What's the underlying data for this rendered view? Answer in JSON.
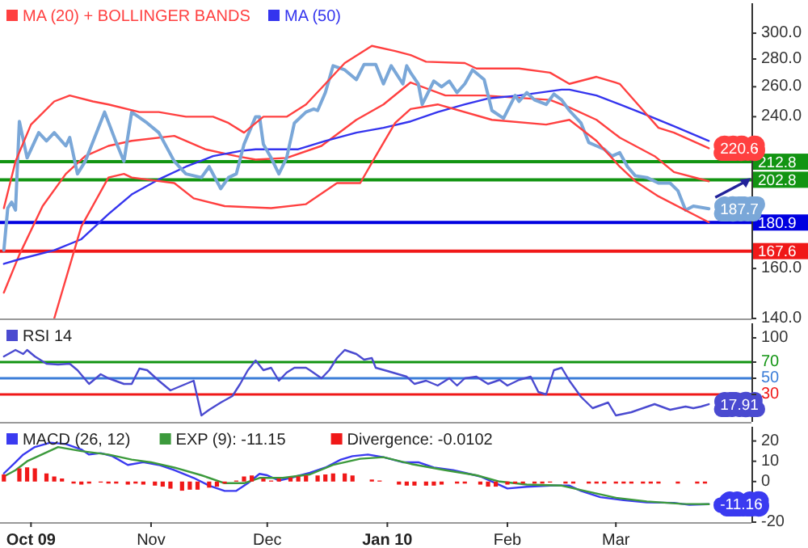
{
  "chart_data": [
    {
      "type": "line",
      "legend": "top left",
      "log": "y",
      "tick_labels": "y",
      "xlim": [
        "2009-09-23",
        "2010-04-05"
      ],
      "ylim": [
        140,
        325
      ],
      "yticks": [
        {
          "value": 140,
          "label": "140.0"
        },
        {
          "value": 160,
          "label": "160.0"
        },
        {
          "value": 240,
          "label": "240.0"
        },
        {
          "value": 260,
          "label": "260.0"
        },
        {
          "value": 280,
          "label": "280.0"
        },
        {
          "value": 300,
          "label": "300.0"
        }
      ],
      "series": [
        {
          "name": "MA (20) + BOLLINGER BANDS",
          "color": "#ff4040",
          "x": [
            "2009-09-24",
            "2009-09-28",
            "2009-10-04",
            "2009-10-10",
            "2009-10-15",
            "2009-10-21",
            "2009-10-27",
            "2009-11-07",
            "2009-11-15",
            "2009-11-23",
            "2009-11-28",
            "2009-12-06",
            "2009-12-15",
            "2009-12-24",
            "2009-12-31",
            "2010-01-07",
            "2010-01-16",
            "2010-01-26",
            "2010-02-12",
            "2010-02-17",
            "2010-02-24",
            "2010-03-02",
            "2010-03-11",
            "2010-03-16",
            "2010-03-25"
          ],
          "values": [
            150,
            166,
            189,
            206,
            216,
            222,
            225,
            228,
            220,
            216,
            214,
            215,
            222,
            238,
            248,
            263,
            254,
            254,
            251,
            246,
            238,
            227,
            216,
            207,
            202
          ]
        },
        {
          "name": "MA (50)",
          "color": "#3434ee",
          "x": [
            "2009-09-24",
            "2009-09-28",
            "2009-10-07",
            "2009-10-14",
            "2009-10-21",
            "2009-10-27",
            "2009-11-03",
            "2009-11-10",
            "2009-11-17",
            "2009-11-24",
            "2009-11-28",
            "2009-12-09",
            "2009-12-16",
            "2009-12-24",
            "2009-12-31",
            "2010-01-07",
            "2010-01-14",
            "2010-01-21",
            "2010-01-27",
            "2010-02-04",
            "2010-02-15",
            "2010-02-17",
            "2010-02-24",
            "2010-03-02",
            "2010-03-09",
            "2010-03-16",
            "2010-03-25"
          ],
          "values": [
            162,
            164,
            168,
            173,
            185,
            195,
            203,
            210,
            216,
            219,
            220,
            220,
            225,
            230,
            233,
            237,
            243,
            248,
            252,
            254,
            258,
            258,
            254,
            248,
            241,
            234,
            225
          ]
        },
        {
          "color": "#7aa7d8",
          "value_labels": [
            null,
            null,
            null,
            null,
            null,
            null,
            null,
            null,
            null,
            null,
            null,
            null,
            null,
            null,
            null,
            null,
            null,
            null,
            null,
            null,
            null,
            null,
            null,
            null,
            null,
            null,
            null,
            null,
            null,
            null,
            null,
            null,
            null,
            null,
            null,
            null,
            null,
            null,
            null,
            null,
            null,
            null,
            null,
            null,
            null,
            null,
            null,
            null,
            null,
            null,
            null,
            null,
            null,
            null,
            null,
            null,
            null,
            null,
            null,
            null,
            null,
            null,
            null,
            null,
            null,
            null,
            null,
            null,
            null,
            null,
            null,
            null,
            null,
            null,
            null,
            null,
            null,
            null,
            null,
            null,
            null,
            "187.7"
          ],
          "x": [
            "2009-09-24",
            "2009-09-25",
            "2009-09-26",
            "2009-09-27",
            "2009-09-28",
            "2009-09-30",
            "2009-10-03",
            "2009-10-05",
            "2009-10-07",
            "2009-10-10",
            "2009-10-11",
            "2009-10-13",
            "2009-10-15",
            "2009-10-20",
            "2009-10-23",
            "2009-10-25",
            "2009-10-27",
            "2009-10-31",
            "2009-11-03",
            "2009-11-07",
            "2009-11-10",
            "2009-11-14",
            "2009-11-16",
            "2009-11-19",
            "2009-11-21",
            "2009-11-23",
            "2009-11-25",
            "2009-11-28",
            "2009-11-29",
            "2009-11-30",
            "2009-12-02",
            "2009-12-04",
            "2009-12-06",
            "2009-12-08",
            "2009-12-11",
            "2009-12-13",
            "2009-12-14",
            "2009-12-16",
            "2009-12-18",
            "2009-12-21",
            "2009-12-24",
            "2009-12-26",
            "2009-12-29",
            "2009-12-31",
            "2010-01-02",
            "2010-01-05",
            "2010-01-06",
            "2010-01-07",
            "2010-01-09",
            "2010-01-10",
            "2010-01-13",
            "2010-01-15",
            "2010-01-17",
            "2010-01-19",
            "2010-01-21",
            "2010-01-23",
            "2010-01-26",
            "2010-01-28",
            "2010-01-31",
            "2010-02-03",
            "2010-02-04",
            "2010-02-06",
            "2010-02-08",
            "2010-02-11",
            "2010-02-13",
            "2010-02-15",
            "2010-02-17",
            "2010-02-20",
            "2010-02-22",
            "2010-02-24",
            "2010-02-26",
            "2010-02-28",
            "2010-03-02",
            "2010-03-04",
            "2010-03-06",
            "2010-03-09",
            "2010-03-12",
            "2010-03-15",
            "2010-03-17",
            "2010-03-19",
            "2010-03-21",
            "2010-03-25"
          ],
          "values": [
            168,
            188,
            191,
            187,
            237,
            215,
            230,
            225,
            230,
            222,
            227,
            206,
            213,
            243,
            224,
            213,
            243,
            236,
            230,
            213,
            206,
            204,
            210,
            198,
            204,
            206,
            223,
            240,
            240,
            223,
            215,
            206,
            215,
            236,
            243,
            245,
            244,
            256,
            275,
            272,
            265,
            276,
            276,
            262,
            275,
            262,
            275,
            270,
            262,
            248,
            264,
            260,
            264,
            256,
            262,
            272,
            265,
            244,
            239,
            254,
            250,
            256,
            251,
            248,
            255,
            251,
            244,
            236,
            224,
            222,
            220,
            216,
            218,
            210,
            205,
            204,
            201,
            201,
            197,
            187,
            189,
            187.7
          ]
        },
        {
          "color": "#ff4040",
          "value_labels": [
            null,
            null,
            null,
            null,
            null,
            null,
            null,
            null,
            null,
            null,
            null,
            null,
            null,
            null,
            null,
            null,
            null,
            null,
            null,
            null,
            null,
            null,
            null,
            null,
            null,
            null,
            null,
            null,
            null,
            null,
            null,
            null,
            "220.6"
          ],
          "x": [
            "2009-09-24",
            "2009-09-27",
            "2009-10-01",
            "2009-10-07",
            "2009-10-11",
            "2009-10-17",
            "2009-10-21",
            "2009-10-29",
            "2009-11-03",
            "2009-11-10",
            "2009-11-17",
            "2009-11-21",
            "2009-11-25",
            "2009-11-30",
            "2009-12-06",
            "2009-12-11",
            "2009-12-16",
            "2009-12-21",
            "2009-12-28",
            "2010-01-03",
            "2010-01-07",
            "2010-01-11",
            "2010-01-21",
            "2010-01-24",
            "2010-02-04",
            "2010-02-12",
            "2010-02-17",
            "2010-02-24",
            "2010-03-02",
            "2010-03-06",
            "2010-03-12",
            "2010-03-16",
            "2010-03-25"
          ],
          "values": [
            188,
            213,
            235,
            250,
            254,
            250,
            248,
            243,
            243,
            240,
            240,
            236,
            230,
            240,
            240,
            248,
            262,
            277,
            290,
            286,
            283,
            278,
            277,
            273,
            273,
            270,
            262,
            267,
            262,
            250,
            233,
            230,
            220.6
          ]
        },
        {
          "color": "#ff4040",
          "x": [
            "2009-10-07",
            "2009-10-14",
            "2009-10-21",
            "2009-10-25",
            "2009-10-27",
            "2009-11-07",
            "2009-11-12",
            "2009-11-20",
            "2009-12-02",
            "2009-12-11",
            "2009-12-19",
            "2009-12-25",
            "2009-12-29",
            "2010-01-03",
            "2010-01-07",
            "2010-01-14",
            "2010-01-28",
            "2010-02-11",
            "2010-02-17",
            "2010-02-24",
            "2010-03-02",
            "2010-03-06",
            "2010-03-12",
            "2010-03-25"
          ],
          "values": [
            140,
            179,
            204,
            206,
            204,
            201,
            193,
            189,
            188,
            190,
            201,
            201,
            216,
            236,
            245,
            248,
            238,
            235,
            238,
            225,
            210,
            202,
            194,
            181
          ]
        }
      ],
      "ref_lines": [
        {
          "axis": "y",
          "value": 212.8,
          "label": "212.8",
          "color": "#129412"
        },
        {
          "axis": "y",
          "value": 202.8,
          "label": "202.8",
          "color": "#129412"
        },
        {
          "axis": "y",
          "value": 180.9,
          "label": "180.9",
          "color": "#0000e0"
        },
        {
          "axis": "y",
          "value": 167.6,
          "label": "167.6",
          "color": "#f01818"
        }
      ]
    },
    {
      "type": "line",
      "legend": "top left",
      "tick_labels": "y",
      "xlim": [
        "2009-09-23",
        "2010-04-05"
      ],
      "ylim": [
        -4,
        118
      ],
      "yticks": [
        30,
        50,
        70,
        100
      ],
      "series": [
        {
          "name": "RSI 14",
          "color": "#4a4ad0",
          "value_labels": [
            null,
            null,
            null,
            null,
            null,
            null,
            null,
            null,
            null,
            null,
            null,
            null,
            null,
            null,
            null,
            null,
            null,
            null,
            null,
            null,
            null,
            null,
            null,
            null,
            null,
            null,
            null,
            null,
            null,
            null,
            null,
            null,
            null,
            null,
            null,
            null,
            null,
            null,
            null,
            null,
            null,
            null,
            null,
            null,
            null,
            null,
            null,
            null,
            null,
            null,
            null,
            null,
            null,
            null,
            null,
            null,
            null,
            null,
            null,
            null,
            null,
            null,
            null,
            null,
            null,
            null,
            null,
            null,
            null,
            null,
            null,
            "17.91"
          ],
          "x": [
            "2009-09-24",
            "2009-09-27",
            "2009-09-29",
            "2009-09-30",
            "2009-10-02",
            "2009-10-05",
            "2009-10-08",
            "2009-10-11",
            "2009-10-13",
            "2009-10-16",
            "2009-10-19",
            "2009-10-21",
            "2009-10-25",
            "2009-10-27",
            "2009-10-29",
            "2009-10-31",
            "2009-11-03",
            "2009-11-06",
            "2009-11-10",
            "2009-11-12",
            "2009-11-14",
            "2009-11-16",
            "2009-11-19",
            "2009-11-22",
            "2009-11-24",
            "2009-11-26",
            "2009-11-28",
            "2009-11-30",
            "2009-12-02",
            "2009-12-04",
            "2009-12-06",
            "2009-12-08",
            "2009-12-11",
            "2009-12-12",
            "2009-12-15",
            "2009-12-17",
            "2009-12-19",
            "2009-12-21",
            "2009-12-24",
            "2009-12-26",
            "2009-12-28",
            "2009-12-29",
            "2010-01-01",
            "2010-01-06",
            "2010-01-08",
            "2010-01-11",
            "2010-01-14",
            "2010-01-17",
            "2010-01-19",
            "2010-01-21",
            "2010-01-24",
            "2010-01-27",
            "2010-01-30",
            "2010-02-01",
            "2010-02-04",
            "2010-02-07",
            "2010-02-09",
            "2010-02-11",
            "2010-02-13",
            "2010-02-15",
            "2010-02-17",
            "2010-02-20",
            "2010-02-23",
            "2010-02-27",
            "2010-03-01",
            "2010-03-05",
            "2010-03-11",
            "2010-03-15",
            "2010-03-19",
            "2010-03-21",
            "2010-03-23",
            "2010-03-25"
          ],
          "values": [
            77,
            85,
            80,
            85,
            77,
            68,
            67,
            68,
            60,
            43,
            55,
            50,
            43,
            43,
            62,
            60,
            47,
            35,
            43,
            47,
            4,
            11,
            20,
            28,
            43,
            60,
            72,
            60,
            63,
            47,
            57,
            63,
            63,
            60,
            50,
            60,
            75,
            85,
            80,
            73,
            75,
            63,
            59,
            52,
            43,
            47,
            41,
            50,
            41,
            50,
            52,
            43,
            48,
            41,
            48,
            52,
            33,
            30,
            60,
            63,
            47,
            27,
            13,
            20,
            4,
            8,
            18,
            11,
            15,
            13,
            15,
            17.91
          ]
        }
      ],
      "ref_lines": [
        {
          "axis": "y",
          "value": 70,
          "color": "#129412"
        },
        {
          "axis": "y",
          "value": 50,
          "color": "#3b7dd8"
        },
        {
          "axis": "y",
          "value": 30,
          "color": "#f01818"
        }
      ]
    },
    {
      "type": "line",
      "legend": "top left",
      "xlim": [
        "2009-09-23",
        "2010-04-05"
      ],
      "ylim": [
        -20,
        27
      ],
      "yticks": [
        20,
        10,
        0,
        -20
      ],
      "xticks": [
        {
          "value": "2009-10-01",
          "label": "Oct 09"
        },
        {
          "value": "2009-11-01",
          "label": "Nov"
        },
        {
          "value": "2009-12-01",
          "label": "Dec"
        },
        {
          "value": "2010-01-01",
          "label": "Jan 10"
        },
        {
          "value": "2010-02-01",
          "label": "Feb"
        },
        {
          "value": "2010-03-01",
          "label": "Mar"
        }
      ],
      "series": [
        {
          "name": "MACD (26, 12)",
          "color": "#3a3af0",
          "value_labels": [
            null,
            null,
            null,
            null,
            null,
            null,
            null,
            null,
            null,
            null,
            null,
            null,
            null,
            null,
            null,
            null,
            null,
            null,
            null,
            null,
            null,
            null,
            null,
            null,
            null,
            null,
            null,
            null,
            null,
            null,
            null,
            null,
            null,
            null,
            null,
            null,
            null,
            null,
            null,
            null,
            null,
            null,
            null,
            null,
            null,
            null,
            "-11.16"
          ],
          "x": [
            "2009-09-24",
            "2009-09-27",
            "2009-09-29",
            "2009-10-02",
            "2009-10-06",
            "2009-10-10",
            "2009-10-14",
            "2009-10-16",
            "2009-10-19",
            "2009-10-22",
            "2009-10-26",
            "2009-10-30",
            "2009-11-03",
            "2009-11-07",
            "2009-11-12",
            "2009-11-16",
            "2009-11-20",
            "2009-11-23",
            "2009-11-26",
            "2009-11-29",
            "2009-12-01",
            "2009-12-04",
            "2009-12-07",
            "2009-12-12",
            "2009-12-16",
            "2009-12-20",
            "2009-12-23",
            "2009-12-27",
            "2009-12-31",
            "2010-01-05",
            "2010-01-09",
            "2010-01-13",
            "2010-01-18",
            "2010-01-21",
            "2010-01-25",
            "2010-01-29",
            "2010-02-01",
            "2010-02-06",
            "2010-02-12",
            "2010-02-17",
            "2010-02-20",
            "2010-02-25",
            "2010-03-03",
            "2010-03-09",
            "2010-03-16",
            "2010-03-20",
            "2010-03-25"
          ],
          "values": [
            4,
            9.5,
            13.3,
            17,
            19.2,
            18.5,
            15.8,
            13.3,
            14,
            12.5,
            8.2,
            9.5,
            8.2,
            5.6,
            1.8,
            -2,
            -4.6,
            -4.6,
            -0.8,
            3.8,
            3.1,
            0.5,
            1.8,
            4.3,
            6.9,
            10.8,
            12.5,
            13.3,
            12,
            9.5,
            9.5,
            6.9,
            5.6,
            4.3,
            2.5,
            -0.8,
            -3.4,
            -2.6,
            -2,
            -2,
            -4.6,
            -7.7,
            -9.2,
            -10.3,
            -10.5,
            -11.5,
            -11.16
          ]
        },
        {
          "name": "EXP (9): -11.15",
          "color": "#3c9a3c",
          "x": [
            "2009-09-24",
            "2009-09-27",
            "2009-09-30",
            "2009-10-08",
            "2009-10-14",
            "2009-10-21",
            "2009-10-27",
            "2009-11-01",
            "2009-11-07",
            "2009-11-14",
            "2009-11-20",
            "2009-11-25",
            "2009-11-29",
            "2009-12-05",
            "2009-12-12",
            "2009-12-18",
            "2009-12-25",
            "2009-12-31",
            "2010-01-07",
            "2010-01-16",
            "2010-01-24",
            "2010-01-30",
            "2010-02-06",
            "2010-02-15",
            "2010-02-21",
            "2010-03-01",
            "2010-03-09",
            "2010-03-18",
            "2010-03-25"
          ],
          "values": [
            2.5,
            5.6,
            10,
            17,
            15,
            13.3,
            10.8,
            9.5,
            6.9,
            3.1,
            -0.8,
            -0.8,
            1.8,
            1.8,
            3.5,
            8.2,
            11.2,
            12,
            8.7,
            5.6,
            3.1,
            0,
            -1.5,
            -2,
            -4.6,
            -8,
            -9.8,
            -11,
            -11.15
          ]
        },
        {
          "name": "Divergence: -0.0102",
          "type": "bar",
          "color": "#f01818",
          "x": [
            "2009-09-24",
            "2009-09-28",
            "2009-09-30",
            "2009-10-02",
            "2009-10-05",
            "2009-10-07",
            "2009-10-09",
            "2009-10-12",
            "2009-10-14",
            "2009-10-16",
            "2009-10-19",
            "2009-10-21",
            "2009-10-23",
            "2009-10-26",
            "2009-10-28",
            "2009-10-30",
            "2009-11-02",
            "2009-11-04",
            "2009-11-06",
            "2009-11-09",
            "2009-11-11",
            "2009-11-13",
            "2009-11-16",
            "2009-11-18",
            "2009-11-20",
            "2009-11-23",
            "2009-11-25",
            "2009-11-27",
            "2009-11-30",
            "2009-12-02",
            "2009-12-04",
            "2009-12-07",
            "2009-12-09",
            "2009-12-11",
            "2009-12-14",
            "2009-12-16",
            "2009-12-18",
            "2009-12-21",
            "2009-12-23",
            "2009-12-28",
            "2009-12-30",
            "2010-01-04",
            "2010-01-06",
            "2010-01-08",
            "2010-01-11",
            "2010-01-13",
            "2010-01-15",
            "2010-01-19",
            "2010-01-21",
            "2010-01-25",
            "2010-01-27",
            "2010-01-29",
            "2010-02-01",
            "2010-02-03",
            "2010-02-05",
            "2010-02-08",
            "2010-02-10",
            "2010-02-12",
            "2010-02-16",
            "2010-02-18",
            "2010-02-22",
            "2010-02-24",
            "2010-02-26",
            "2010-03-01",
            "2010-03-03",
            "2010-03-05",
            "2010-03-08",
            "2010-03-10",
            "2010-03-12",
            "2010-03-17",
            "2010-03-22",
            "2010-03-24"
          ],
          "values": [
            3.5,
            6.5,
            7,
            6.5,
            4,
            2.5,
            1.5,
            -1,
            -1.5,
            -1,
            -0.5,
            -1,
            -1,
            -1.5,
            -1,
            -1.5,
            -2,
            -2.5,
            -3.5,
            -4.5,
            -4,
            -4,
            -3,
            -2.5,
            -1,
            0.5,
            2.5,
            3,
            1.5,
            0.5,
            1.5,
            2,
            2.5,
            3,
            3,
            3.5,
            4,
            4,
            3,
            1,
            0.5,
            -1.5,
            -2,
            -2,
            -2,
            -2,
            -1.5,
            -1,
            -1,
            -1.5,
            -2.5,
            -2.5,
            -1.5,
            -1,
            -1,
            -1,
            -1,
            -0.5,
            -1,
            -1,
            -1,
            -1,
            -1,
            -1,
            -1,
            -1,
            -1,
            -1,
            -1,
            -1,
            -1,
            -1
          ]
        }
      ]
    }
  ]
}
